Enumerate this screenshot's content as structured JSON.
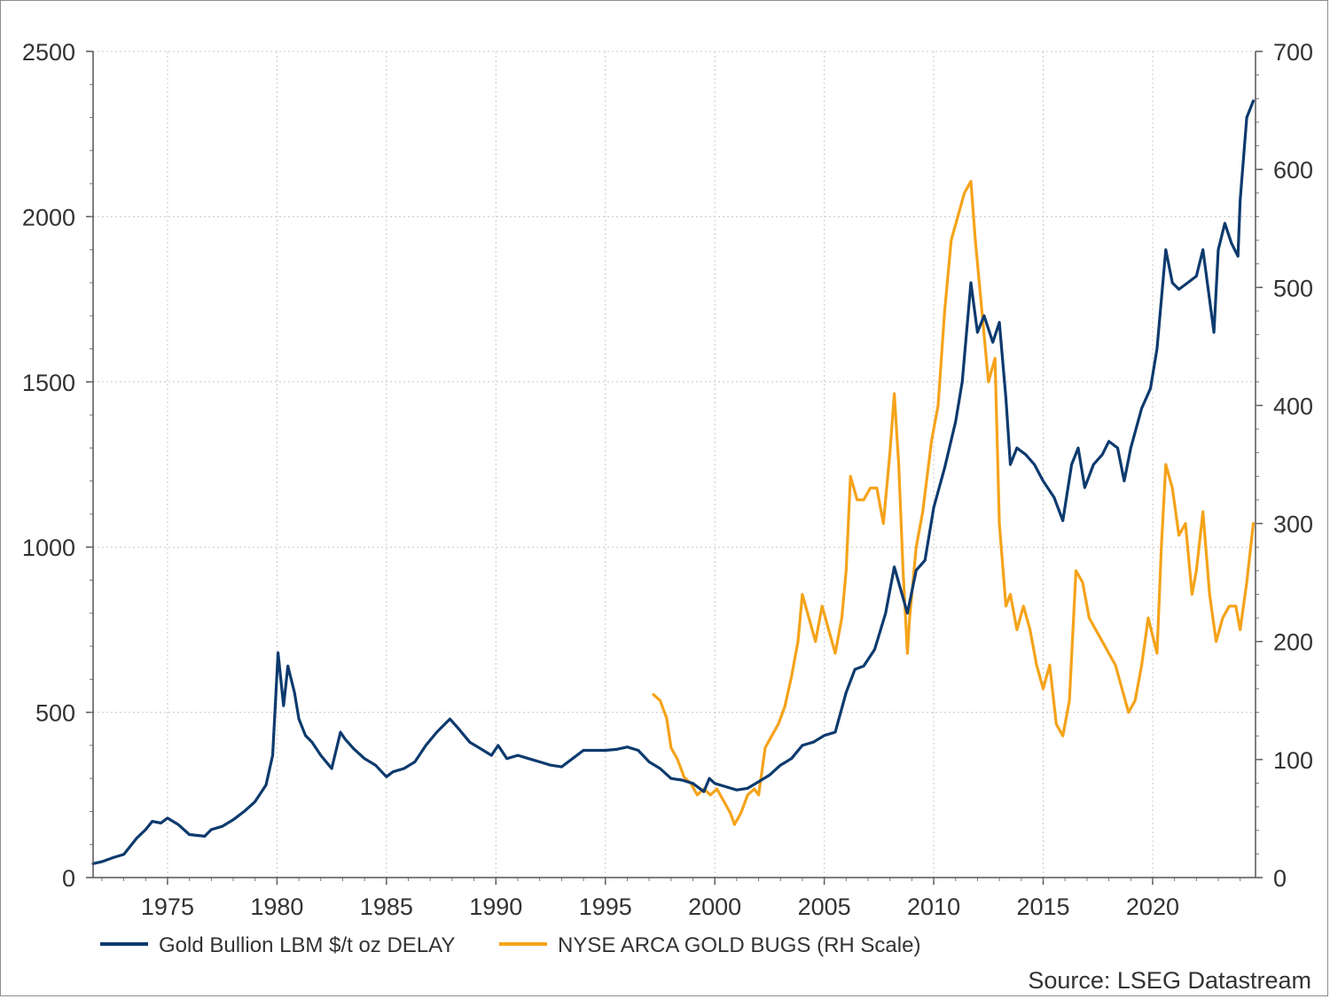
{
  "chart_data": {
    "type": "line",
    "title": "",
    "xlabel": "",
    "ylabel": "",
    "source": "Source: LSEG Datastream",
    "x_ticks": [
      "1975",
      "1980",
      "1985",
      "1990",
      "1995",
      "2000",
      "2005",
      "2010",
      "2015",
      "2020"
    ],
    "y_left_ticks": [
      "0",
      "500",
      "1000",
      "1500",
      "2000",
      "2500"
    ],
    "y_right_ticks": [
      "0",
      "100",
      "200",
      "300",
      "400",
      "500",
      "600",
      "700"
    ],
    "xlim": [
      1971.6,
      2024.7
    ],
    "ylim_left": [
      0,
      2500
    ],
    "ylim_right": [
      0,
      700
    ],
    "grid": true,
    "legend_position": "bottom-left",
    "series": [
      {
        "name": "Gold Bullion LBM $/t oz DELAY",
        "axis": "left",
        "color": "#0d3a6e",
        "x": [
          1971.6,
          1972.0,
          1972.5,
          1973.0,
          1973.3,
          1973.6,
          1974.0,
          1974.3,
          1974.7,
          1975.0,
          1975.5,
          1976.0,
          1976.7,
          1977.0,
          1977.5,
          1978.0,
          1978.5,
          1979.0,
          1979.5,
          1979.8,
          1980.05,
          1980.3,
          1980.5,
          1980.8,
          1981.0,
          1981.3,
          1981.6,
          1982.0,
          1982.5,
          1982.9,
          1983.1,
          1983.5,
          1984.0,
          1984.5,
          1985.0,
          1985.3,
          1985.8,
          1986.3,
          1986.8,
          1987.3,
          1987.9,
          1988.3,
          1988.8,
          1989.3,
          1989.8,
          1990.1,
          1990.5,
          1991.0,
          1991.5,
          1992.0,
          1992.5,
          1993.0,
          1993.5,
          1994.0,
          1994.5,
          1995.0,
          1995.5,
          1996.0,
          1996.5,
          1997.0,
          1997.5,
          1998.0,
          1998.5,
          1999.0,
          1999.5,
          1999.75,
          2000.0,
          2000.5,
          2001.0,
          2001.5,
          2002.0,
          2002.5,
          2003.0,
          2003.5,
          2004.0,
          2004.5,
          2005.0,
          2005.5,
          2006.0,
          2006.4,
          2006.8,
          2007.3,
          2007.8,
          2008.2,
          2008.5,
          2008.8,
          2009.2,
          2009.6,
          2010.0,
          2010.5,
          2011.0,
          2011.3,
          2011.7,
          2012.0,
          2012.3,
          2012.7,
          2013.0,
          2013.3,
          2013.5,
          2013.8,
          2014.2,
          2014.6,
          2015.0,
          2015.5,
          2015.9,
          2016.3,
          2016.6,
          2016.9,
          2017.3,
          2017.7,
          2018.0,
          2018.4,
          2018.7,
          2019.0,
          2019.5,
          2019.9,
          2020.2,
          2020.6,
          2020.9,
          2021.2,
          2021.6,
          2022.0,
          2022.3,
          2022.8,
          2023.0,
          2023.3,
          2023.6,
          2023.9,
          2024.0,
          2024.3,
          2024.6
        ],
        "values": [
          42,
          48,
          60,
          70,
          95,
          120,
          145,
          170,
          165,
          180,
          160,
          130,
          125,
          145,
          155,
          175,
          200,
          230,
          280,
          370,
          680,
          520,
          640,
          560,
          480,
          430,
          410,
          370,
          330,
          440,
          420,
          390,
          360,
          340,
          305,
          320,
          330,
          350,
          400,
          440,
          480,
          450,
          410,
          390,
          370,
          400,
          360,
          370,
          360,
          350,
          340,
          335,
          360,
          385,
          385,
          385,
          388,
          395,
          385,
          350,
          330,
          300,
          295,
          285,
          260,
          300,
          285,
          275,
          265,
          270,
          290,
          310,
          340,
          360,
          400,
          410,
          430,
          440,
          560,
          630,
          640,
          690,
          800,
          940,
          870,
          800,
          930,
          960,
          1120,
          1240,
          1380,
          1500,
          1800,
          1650,
          1700,
          1620,
          1680,
          1450,
          1250,
          1300,
          1280,
          1250,
          1200,
          1150,
          1080,
          1250,
          1300,
          1180,
          1250,
          1280,
          1320,
          1300,
          1200,
          1300,
          1420,
          1480,
          1600,
          1900,
          1800,
          1780,
          1800,
          1820,
          1900,
          1650,
          1900,
          1980,
          1920,
          1880,
          2050,
          2300,
          2350
        ]
      },
      {
        "name": "NYSE ARCA GOLD BUGS (RH Scale)",
        "axis": "right",
        "color": "#f5a31a",
        "x": [
          1997.2,
          1997.5,
          1997.8,
          1998.0,
          1998.3,
          1998.6,
          1998.9,
          1999.2,
          1999.5,
          1999.8,
          2000.1,
          2000.4,
          2000.7,
          2000.9,
          2001.2,
          2001.5,
          2001.8,
          2002.0,
          2002.3,
          2002.6,
          2002.9,
          2003.2,
          2003.5,
          2003.8,
          2004.0,
          2004.3,
          2004.6,
          2004.9,
          2005.2,
          2005.5,
          2005.8,
          2006.0,
          2006.2,
          2006.5,
          2006.8,
          2007.1,
          2007.4,
          2007.7,
          2008.0,
          2008.2,
          2008.4,
          2008.6,
          2008.8,
          2008.9,
          2009.2,
          2009.5,
          2009.9,
          2010.2,
          2010.5,
          2010.8,
          2011.1,
          2011.4,
          2011.7,
          2011.9,
          2012.2,
          2012.5,
          2012.8,
          2013.0,
          2013.3,
          2013.5,
          2013.8,
          2014.1,
          2014.4,
          2014.7,
          2015.0,
          2015.3,
          2015.6,
          2015.9,
          2016.2,
          2016.5,
          2016.8,
          2017.1,
          2017.4,
          2017.7,
          2018.0,
          2018.3,
          2018.6,
          2018.9,
          2019.2,
          2019.5,
          2019.8,
          2020.2,
          2020.4,
          2020.6,
          2020.9,
          2021.2,
          2021.5,
          2021.8,
          2022.0,
          2022.3,
          2022.6,
          2022.9,
          2023.2,
          2023.5,
          2023.8,
          2024.0,
          2024.3,
          2024.6
        ],
        "values": [
          155,
          150,
          135,
          110,
          100,
          85,
          80,
          70,
          75,
          70,
          75,
          65,
          55,
          45,
          55,
          70,
          75,
          70,
          110,
          120,
          130,
          145,
          170,
          200,
          240,
          220,
          200,
          230,
          210,
          190,
          220,
          260,
          340,
          320,
          320,
          330,
          330,
          300,
          360,
          410,
          350,
          260,
          190,
          220,
          280,
          310,
          370,
          400,
          480,
          540,
          560,
          580,
          590,
          540,
          480,
          420,
          440,
          300,
          230,
          240,
          210,
          230,
          210,
          180,
          160,
          180,
          130,
          120,
          150,
          260,
          250,
          220,
          210,
          200,
          190,
          180,
          160,
          140,
          150,
          180,
          220,
          190,
          280,
          350,
          330,
          290,
          300,
          240,
          260,
          310,
          240,
          200,
          220,
          230,
          230,
          210,
          250,
          300
        ]
      }
    ]
  }
}
